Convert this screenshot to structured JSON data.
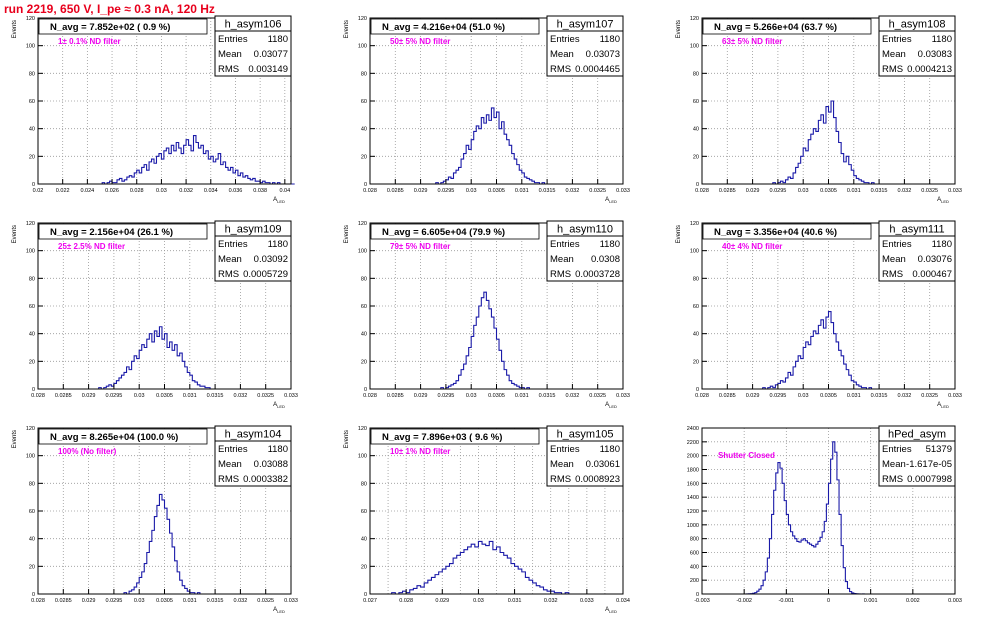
{
  "page_title": "run 2219,   650 V, I_pe ≈ 0.3 nA, 120 Hz",
  "stats_labels": {
    "entries": "Entries",
    "mean": "Mean",
    "rms": "RMS"
  },
  "colors": {
    "hist_line": "#1a1aa8",
    "annotation": "#ee00ee",
    "title": "#e8001c",
    "frame": "#000000",
    "grid": "#999999"
  },
  "chart_data": [
    {
      "type": "histogram",
      "name": "h_asym106",
      "navg": "N_avg = 7.852e+02 ( 0.9 %)",
      "annotation": "1± 0.1% ND filter",
      "stats": {
        "entries": "1180",
        "mean": "0.03077",
        "rms": "0.003149"
      },
      "ylabel": "Events",
      "xlabel": "A_LED",
      "xlim": [
        0.02,
        0.0405
      ],
      "ylim": [
        0,
        120
      ],
      "xticks": [
        0.02,
        0.022,
        0.024,
        0.026,
        0.028,
        0.03,
        0.032,
        0.034,
        0.036,
        0.038,
        0.04
      ],
      "xticklabels": [
        "0.02",
        "0.022",
        "0.024",
        "0.026",
        "0.028",
        "0.03",
        "0.032",
        "0.034",
        "0.036",
        "0.038",
        "0.04"
      ],
      "yticks": [
        0,
        20,
        40,
        60,
        80,
        100,
        120
      ],
      "gridx": [
        0.022,
        0.024,
        0.026,
        0.028,
        0.03,
        0.032,
        0.034,
        0.036,
        0.038,
        0.04
      ],
      "gridy": [
        20,
        40,
        60,
        80,
        100,
        120
      ],
      "bin_start": 0.02,
      "bin_width": 0.0002,
      "counts": [
        0,
        0,
        0,
        0,
        0,
        0,
        0,
        0,
        0,
        0,
        0,
        0,
        0,
        0,
        0,
        0,
        0,
        0,
        0,
        0,
        0,
        0,
        0,
        0,
        0,
        0,
        1,
        0,
        1,
        2,
        1,
        1,
        3,
        4,
        2,
        3,
        5,
        6,
        5,
        8,
        10,
        8,
        12,
        14,
        10,
        16,
        18,
        15,
        20,
        22,
        18,
        24,
        26,
        22,
        28,
        24,
        30,
        26,
        22,
        28,
        32,
        28,
        24,
        35,
        30,
        26,
        28,
        22,
        24,
        18,
        20,
        16,
        18,
        22,
        14,
        16,
        12,
        10,
        12,
        8,
        10,
        6,
        8,
        5,
        6,
        4,
        3,
        4,
        2,
        2,
        1,
        2,
        1,
        1,
        0,
        1,
        0,
        1,
        0,
        0,
        0,
        0,
        0,
        0
      ]
    },
    {
      "type": "histogram",
      "name": "h_asym107",
      "navg": "N_avg = 4.216e+04 (51.0 %)",
      "annotation": "50± 5% ND filter",
      "stats": {
        "entries": "1180",
        "mean": "0.03073",
        "rms": "0.0004465"
      },
      "ylabel": "Events",
      "xlabel": "A_LED",
      "xlim": [
        0.028,
        0.033
      ],
      "ylim": [
        0,
        120
      ],
      "xticks": [
        0.028,
        0.0285,
        0.029,
        0.0295,
        0.03,
        0.0305,
        0.031,
        0.0315,
        0.032,
        0.0325,
        0.033
      ],
      "xticklabels": [
        "0.028",
        "0.0285",
        "0.029",
        "0.0295",
        "0.03",
        "0.0305",
        "0.031",
        "0.0315",
        "0.032",
        "0.0325",
        "0.033"
      ],
      "yticks": [
        0,
        20,
        40,
        60,
        80,
        100,
        120
      ],
      "gridx": [
        0.0285,
        0.029,
        0.0295,
        0.03,
        0.0305,
        0.031,
        0.0315,
        0.032,
        0.0325,
        0.033
      ],
      "gridy": [
        20,
        40,
        60,
        80,
        100,
        120
      ],
      "bin_start": 0.0293,
      "bin_width": 5e-05,
      "counts": [
        1,
        0,
        1,
        2,
        3,
        5,
        4,
        8,
        10,
        12,
        18,
        22,
        28,
        25,
        32,
        38,
        42,
        40,
        48,
        44,
        50,
        46,
        55,
        48,
        52,
        40,
        45,
        36,
        32,
        28,
        22,
        18,
        14,
        10,
        8,
        5,
        4,
        3,
        2,
        1,
        1,
        0,
        1
      ]
    },
    {
      "type": "histogram",
      "name": "h_asym108",
      "navg": "N_avg = 5.266e+04 (63.7 %)",
      "annotation": "63± 5% ND filter",
      "stats": {
        "entries": "1180",
        "mean": "0.03083",
        "rms": "0.0004213"
      },
      "ylabel": "Events",
      "xlabel": "A_LED",
      "xlim": [
        0.028,
        0.033
      ],
      "ylim": [
        0,
        120
      ],
      "xticks": [
        0.028,
        0.0285,
        0.029,
        0.0295,
        0.03,
        0.0305,
        0.031,
        0.0315,
        0.032,
        0.0325,
        0.033
      ],
      "xticklabels": [
        "0.028",
        "0.0285",
        "0.029",
        "0.0295",
        "0.03",
        "0.0305",
        "0.031",
        "0.0315",
        "0.032",
        "0.0325",
        "0.033"
      ],
      "yticks": [
        0,
        20,
        40,
        60,
        80,
        100,
        120
      ],
      "gridx": [
        0.0285,
        0.029,
        0.0295,
        0.03,
        0.0305,
        0.031,
        0.0315,
        0.032,
        0.0325,
        0.033
      ],
      "gridy": [
        20,
        40,
        60,
        80,
        100,
        120
      ],
      "bin_start": 0.0294,
      "bin_width": 5e-05,
      "counts": [
        1,
        0,
        1,
        2,
        1,
        3,
        5,
        4,
        8,
        12,
        15,
        20,
        26,
        24,
        32,
        36,
        40,
        38,
        46,
        50,
        44,
        56,
        52,
        60,
        48,
        38,
        30,
        22,
        16,
        20,
        14,
        10,
        6,
        4,
        3,
        2,
        1,
        1,
        0,
        1
      ]
    },
    {
      "type": "histogram",
      "name": "h_asym109",
      "navg": "N_avg = 2.156e+04 (26.1 %)",
      "annotation": "25± 2.5% ND filter",
      "stats": {
        "entries": "1180",
        "mean": "0.03092",
        "rms": "0.0005729"
      },
      "ylabel": "Events",
      "xlabel": "A_LED",
      "xlim": [
        0.028,
        0.033
      ],
      "ylim": [
        0,
        120
      ],
      "xticks": [
        0.028,
        0.0285,
        0.029,
        0.0295,
        0.03,
        0.0305,
        0.031,
        0.0315,
        0.032,
        0.0325,
        0.033
      ],
      "xticklabels": [
        "0.028",
        "0.0285",
        "0.029",
        "0.0295",
        "0.03",
        "0.0305",
        "0.031",
        "0.0315",
        "0.032",
        "0.0325",
        "0.033"
      ],
      "yticks": [
        0,
        20,
        40,
        60,
        80,
        100,
        120
      ],
      "gridx": [
        0.0285,
        0.029,
        0.0295,
        0.03,
        0.0305,
        0.031,
        0.0315,
        0.032,
        0.0325,
        0.033
      ],
      "gridy": [
        20,
        40,
        60,
        80,
        100,
        120
      ],
      "bin_start": 0.0292,
      "bin_width": 5e-05,
      "counts": [
        1,
        0,
        1,
        2,
        3,
        2,
        4,
        6,
        8,
        10,
        12,
        16,
        14,
        20,
        24,
        22,
        28,
        32,
        30,
        36,
        40,
        34,
        42,
        38,
        45,
        36,
        40,
        30,
        34,
        28,
        32,
        24,
        26,
        20,
        16,
        12,
        10,
        6,
        5,
        3,
        2,
        2,
        1,
        1
      ]
    },
    {
      "type": "histogram",
      "name": "h_asym110",
      "navg": "N_avg = 6.605e+04 (79.9 %)",
      "annotation": "79± 5% ND filter",
      "stats": {
        "entries": "1180",
        "mean": "0.0308",
        "rms": "0.0003728"
      },
      "ylabel": "Events",
      "xlabel": "A_LED",
      "xlim": [
        0.028,
        0.033
      ],
      "ylim": [
        0,
        120
      ],
      "xticks": [
        0.028,
        0.0285,
        0.029,
        0.0295,
        0.03,
        0.0305,
        0.031,
        0.0315,
        0.032,
        0.0325,
        0.033
      ],
      "xticklabels": [
        "0.028",
        "0.0285",
        "0.029",
        "0.0295",
        "0.03",
        "0.0305",
        "0.031",
        "0.0315",
        "0.032",
        "0.0325",
        "0.033"
      ],
      "yticks": [
        0,
        20,
        40,
        60,
        80,
        100,
        120
      ],
      "gridx": [
        0.0285,
        0.029,
        0.0295,
        0.03,
        0.0305,
        0.031,
        0.0315,
        0.032,
        0.0325,
        0.033
      ],
      "gridy": [
        20,
        40,
        60,
        80,
        100,
        120
      ],
      "bin_start": 0.0294,
      "bin_width": 5e-05,
      "counts": [
        1,
        0,
        1,
        2,
        3,
        4,
        6,
        10,
        14,
        18,
        24,
        30,
        38,
        46,
        52,
        60,
        66,
        70,
        64,
        58,
        52,
        44,
        36,
        28,
        20,
        14,
        10,
        6,
        4,
        3,
        2,
        1,
        1,
        0,
        1
      ]
    },
    {
      "type": "histogram",
      "name": "h_asym111",
      "navg": "N_avg = 3.356e+04 (40.6 %)",
      "annotation": "40± 4% ND filter",
      "stats": {
        "entries": "1180",
        "mean": "0.03076",
        "rms": "0.000467"
      },
      "ylabel": "Events",
      "xlabel": "A_LED",
      "xlim": [
        0.028,
        0.033
      ],
      "ylim": [
        0,
        120
      ],
      "xticks": [
        0.028,
        0.0285,
        0.029,
        0.0295,
        0.03,
        0.0305,
        0.031,
        0.0315,
        0.032,
        0.0325,
        0.033
      ],
      "xticklabels": [
        "0.028",
        "0.0285",
        "0.029",
        "0.0295",
        "0.03",
        "0.0305",
        "0.031",
        "0.0315",
        "0.032",
        "0.0325",
        "0.033"
      ],
      "yticks": [
        0,
        20,
        40,
        60,
        80,
        100,
        120
      ],
      "gridx": [
        0.0285,
        0.029,
        0.0295,
        0.03,
        0.0305,
        0.031,
        0.0315,
        0.032,
        0.0325,
        0.033
      ],
      "gridy": [
        20,
        40,
        60,
        80,
        100,
        120
      ],
      "bin_start": 0.0292,
      "bin_width": 5e-05,
      "counts": [
        1,
        0,
        1,
        2,
        1,
        3,
        4,
        6,
        5,
        8,
        12,
        10,
        16,
        20,
        24,
        22,
        30,
        34,
        32,
        38,
        42,
        40,
        46,
        50,
        44,
        52,
        56,
        48,
        40,
        34,
        28,
        24,
        18,
        14,
        10,
        6,
        5,
        3,
        2,
        1,
        1,
        0,
        1
      ]
    },
    {
      "type": "histogram",
      "name": "h_asym104",
      "navg": "N_avg = 8.265e+04 (100.0 %)",
      "annotation": "100% (No filter)",
      "stats": {
        "entries": "1180",
        "mean": "0.03088",
        "rms": "0.0003382"
      },
      "ylabel": "Events",
      "xlabel": "A_LED",
      "xlim": [
        0.028,
        0.033
      ],
      "ylim": [
        0,
        120
      ],
      "xticks": [
        0.028,
        0.0285,
        0.029,
        0.0295,
        0.03,
        0.0305,
        0.031,
        0.0315,
        0.032,
        0.0325,
        0.033
      ],
      "xticklabels": [
        "0.028",
        "0.0285",
        "0.029",
        "0.0295",
        "0.03",
        "0.0305",
        "0.031",
        "0.0315",
        "0.032",
        "0.0325",
        "0.033"
      ],
      "yticks": [
        0,
        20,
        40,
        60,
        80,
        100,
        120
      ],
      "gridx": [
        0.0285,
        0.029,
        0.0295,
        0.03,
        0.0305,
        0.031,
        0.0315,
        0.032,
        0.0325,
        0.033
      ],
      "gridy": [
        20,
        40,
        60,
        80,
        100,
        120
      ],
      "bin_start": 0.0297,
      "bin_width": 5e-05,
      "counts": [
        1,
        0,
        2,
        3,
        5,
        8,
        12,
        16,
        22,
        30,
        38,
        46,
        56,
        64,
        72,
        68,
        62,
        54,
        44,
        34,
        24,
        16,
        10,
        6,
        4,
        2,
        1,
        1,
        0,
        1
      ]
    },
    {
      "type": "histogram",
      "name": "h_asym105",
      "navg": "N_avg = 7.896e+03 ( 9.6 %)",
      "annotation": "10± 1% ND filter",
      "stats": {
        "entries": "1180",
        "mean": "0.03061",
        "rms": "0.0008923"
      },
      "ylabel": "Events",
      "xlabel": "A_LED",
      "xlim": [
        0.027,
        0.034
      ],
      "ylim": [
        0,
        120
      ],
      "xticks": [
        0.027,
        0.028,
        0.029,
        0.03,
        0.031,
        0.032,
        0.033,
        0.034
      ],
      "xticklabels": [
        "0.027",
        "0.028",
        "0.029",
        "0.03",
        "0.031",
        "0.032",
        "0.033",
        "0.034"
      ],
      "yticks": [
        0,
        20,
        40,
        60,
        80,
        100,
        120
      ],
      "gridx": [
        0.0275,
        0.028,
        0.0285,
        0.029,
        0.0295,
        0.03,
        0.0305,
        0.031,
        0.0315,
        0.032,
        0.0325,
        0.033,
        0.0335,
        0.034
      ],
      "gridy": [
        20,
        40,
        60,
        80,
        100,
        120
      ],
      "bin_start": 0.0275,
      "bin_width": 0.0001,
      "counts": [
        0,
        1,
        0,
        1,
        2,
        1,
        3,
        4,
        6,
        5,
        8,
        10,
        12,
        14,
        16,
        18,
        20,
        22,
        26,
        28,
        30,
        32,
        34,
        36,
        34,
        38,
        36,
        35,
        38,
        32,
        34,
        30,
        28,
        26,
        22,
        20,
        18,
        16,
        12,
        10,
        8,
        6,
        5,
        3,
        2,
        2,
        1,
        1,
        0,
        1
      ]
    },
    {
      "type": "histogram",
      "name": "hPed_asym",
      "navg": "",
      "annotation": "Shutter Closed",
      "stats": {
        "entries": "51379",
        "mean": "-1.617e-05",
        "rms": "0.0007998"
      },
      "ylabel": "",
      "xlabel": "",
      "xlim": [
        -0.003,
        0.003
      ],
      "ylim": [
        0,
        2400
      ],
      "xticks": [
        -0.003,
        -0.002,
        -0.001,
        0,
        0.001,
        0.002,
        0.003
      ],
      "xticklabels": [
        "-0.003",
        "-0.002",
        "-0.001",
        "0",
        "0.001",
        "0.002",
        "0.003"
      ],
      "yticks": [
        0,
        200,
        400,
        600,
        800,
        1000,
        1200,
        1400,
        1600,
        1800,
        2000,
        2200,
        2400
      ],
      "gridx": [
        -0.002,
        -0.001,
        0,
        0.001,
        0.002,
        0.003
      ],
      "gridy": [
        200,
        400,
        600,
        800,
        1000,
        1200,
        1400,
        1600,
        1800,
        2000,
        2200,
        2400
      ],
      "bin_start": -0.002,
      "bin_width": 5e-05,
      "counts": [
        0,
        1,
        2,
        5,
        10,
        20,
        40,
        70,
        120,
        200,
        320,
        520,
        800,
        1150,
        1500,
        1750,
        1900,
        1820,
        1600,
        1350,
        1150,
        1000,
        900,
        840,
        800,
        760,
        750,
        780,
        800,
        770,
        740,
        720,
        700,
        680,
        720,
        760,
        820,
        900,
        1050,
        1300,
        1600,
        1950,
        2200,
        2050,
        1650,
        1150,
        700,
        380,
        180,
        80,
        35,
        15,
        6,
        3,
        1,
        0,
        1,
        0
      ]
    }
  ]
}
